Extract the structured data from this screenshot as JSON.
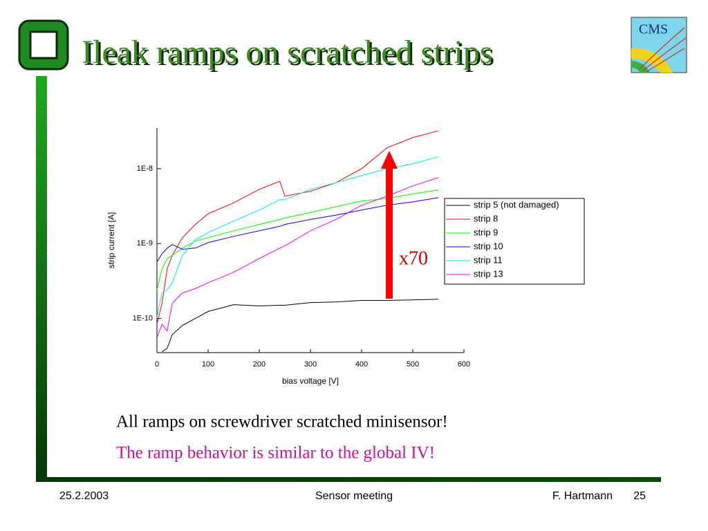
{
  "header": {
    "title": "Ileak ramps on scratched strips",
    "logo_text": "CMS"
  },
  "chart_data": {
    "type": "line",
    "x_label": "bias voltage [V]",
    "y_label": "strip current [A]",
    "annotation": "x70",
    "x": [
      0,
      10,
      20,
      30,
      50,
      75,
      100,
      150,
      200,
      240,
      250,
      300,
      350,
      400,
      450,
      500,
      550
    ],
    "series": [
      {
        "name": "strip 5 (not damaged)",
        "color": "#000000",
        "values": [
          null,
          3.6e-11,
          4e-11,
          6.1e-11,
          8.1e-11,
          1e-10,
          1.24e-10,
          1.53e-10,
          1.47e-10,
          1.5e-10,
          1.5e-10,
          1.63e-10,
          1.66e-10,
          1.74e-10,
          1.74e-10,
          1.77e-10,
          1.81e-10
        ]
      },
      {
        "name": "strip 8",
        "color": "#ff0000",
        "values": [
          8.4e-11,
          1.6e-10,
          4.6e-10,
          7e-10,
          1.2e-09,
          1.8e-09,
          2.5e-09,
          3.5e-09,
          5.3e-09,
          6.8e-09,
          4.3e-09,
          5e-09,
          6.5e-09,
          1e-08,
          1.9e-08,
          2.6e-08,
          3.2e-08
        ]
      },
      {
        "name": "strip 9",
        "color": "#00ff00",
        "values": [
          2.4e-10,
          4.6e-10,
          6.3e-10,
          7e-10,
          8.7e-10,
          1.08e-09,
          1.2e-09,
          1.48e-09,
          1.8e-09,
          2.1e-09,
          2.2e-09,
          2.6e-09,
          3.1e-09,
          3.7e-09,
          4e-09,
          4.6e-09,
          5.2e-09
        ]
      },
      {
        "name": "strip 10",
        "color": "#0000ff",
        "values": [
          5.7e-10,
          7.3e-10,
          8.7e-10,
          9.7e-10,
          8.4e-10,
          8.7e-10,
          1.03e-09,
          1.25e-09,
          1.48e-09,
          1.7e-09,
          1.8e-09,
          2.1e-09,
          2.4e-09,
          2.8e-09,
          3.25e-09,
          3.6e-09,
          4.1e-09
        ]
      },
      {
        "name": "strip 11",
        "color": "#00e5ff",
        "values": [
          1.04e-10,
          2.2e-10,
          2.4e-10,
          3e-10,
          7e-10,
          1.12e-09,
          1.4e-09,
          2e-09,
          2.8e-09,
          3.85e-09,
          3.85e-09,
          5.3e-09,
          6.5e-09,
          8.1e-09,
          1e-08,
          1.16e-08,
          1.44e-08
        ]
      },
      {
        "name": "strip 13",
        "color": "#ff00ff",
        "values": [
          5.5e-11,
          8.4e-11,
          6.8e-11,
          1.6e-10,
          2.2e-10,
          2.5e-10,
          3e-10,
          4.15e-10,
          6.3e-10,
          8.7e-10,
          9.3e-10,
          1.48e-09,
          2.1e-09,
          3.25e-09,
          4.3e-09,
          5.9e-09,
          7.6e-09
        ]
      }
    ],
    "xlim": [
      0,
      600
    ],
    "xticks": [
      0,
      100,
      200,
      300,
      400,
      500,
      600
    ],
    "ylim": [
      3.5e-11,
      3.5e-08
    ],
    "y_log": true,
    "yticks": [
      {
        "value": 1e-10,
        "label": "1E-10"
      },
      {
        "value": 1e-09,
        "label": "1E-9"
      },
      {
        "value": 1e-08,
        "label": "1E-8"
      }
    ],
    "legend": "right"
  },
  "body": {
    "lines": [
      "All ramps on screwdriver scratched minisensor!",
      "The ramp behavior is similar to the global IV!"
    ]
  },
  "footer": {
    "date": "25.2.2003",
    "event": "Sensor meeting",
    "author": "F. Hartmann",
    "page": 25
  }
}
